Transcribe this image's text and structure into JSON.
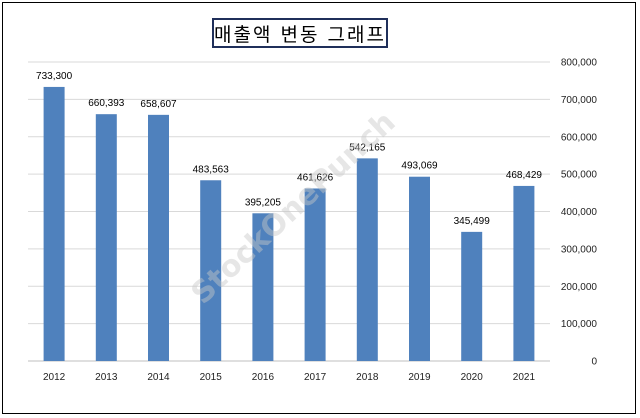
{
  "chart_data": {
    "type": "bar",
    "title": "매출액 변동 그래프",
    "categories": [
      "2012",
      "2013",
      "2014",
      "2015",
      "2016",
      "2017",
      "2018",
      "2019",
      "2020",
      "2021"
    ],
    "values": [
      733300,
      660393,
      658607,
      483563,
      395205,
      461626,
      542165,
      493069,
      345499,
      468429
    ],
    "data_labels": [
      "733,300",
      "660,393",
      "658,607",
      "483,563",
      "395,205",
      "461,626",
      "542,165",
      "493,069",
      "345,499",
      "468,429"
    ],
    "xlabel": "",
    "ylabel": "",
    "ylim": [
      0,
      800000
    ],
    "yticks": [
      0,
      100000,
      200000,
      300000,
      400000,
      500000,
      600000,
      700000,
      800000
    ],
    "ytick_labels": [
      "0",
      "100,000",
      "200,000",
      "300,000",
      "400,000",
      "500,000",
      "600,000",
      "700,000",
      "800,000"
    ],
    "y_axis_side": "right",
    "grid": true,
    "legend": "none",
    "bar_color": "#4f81bd",
    "grid_color": "#d9d9d9"
  },
  "watermark": "StockOnePunch"
}
